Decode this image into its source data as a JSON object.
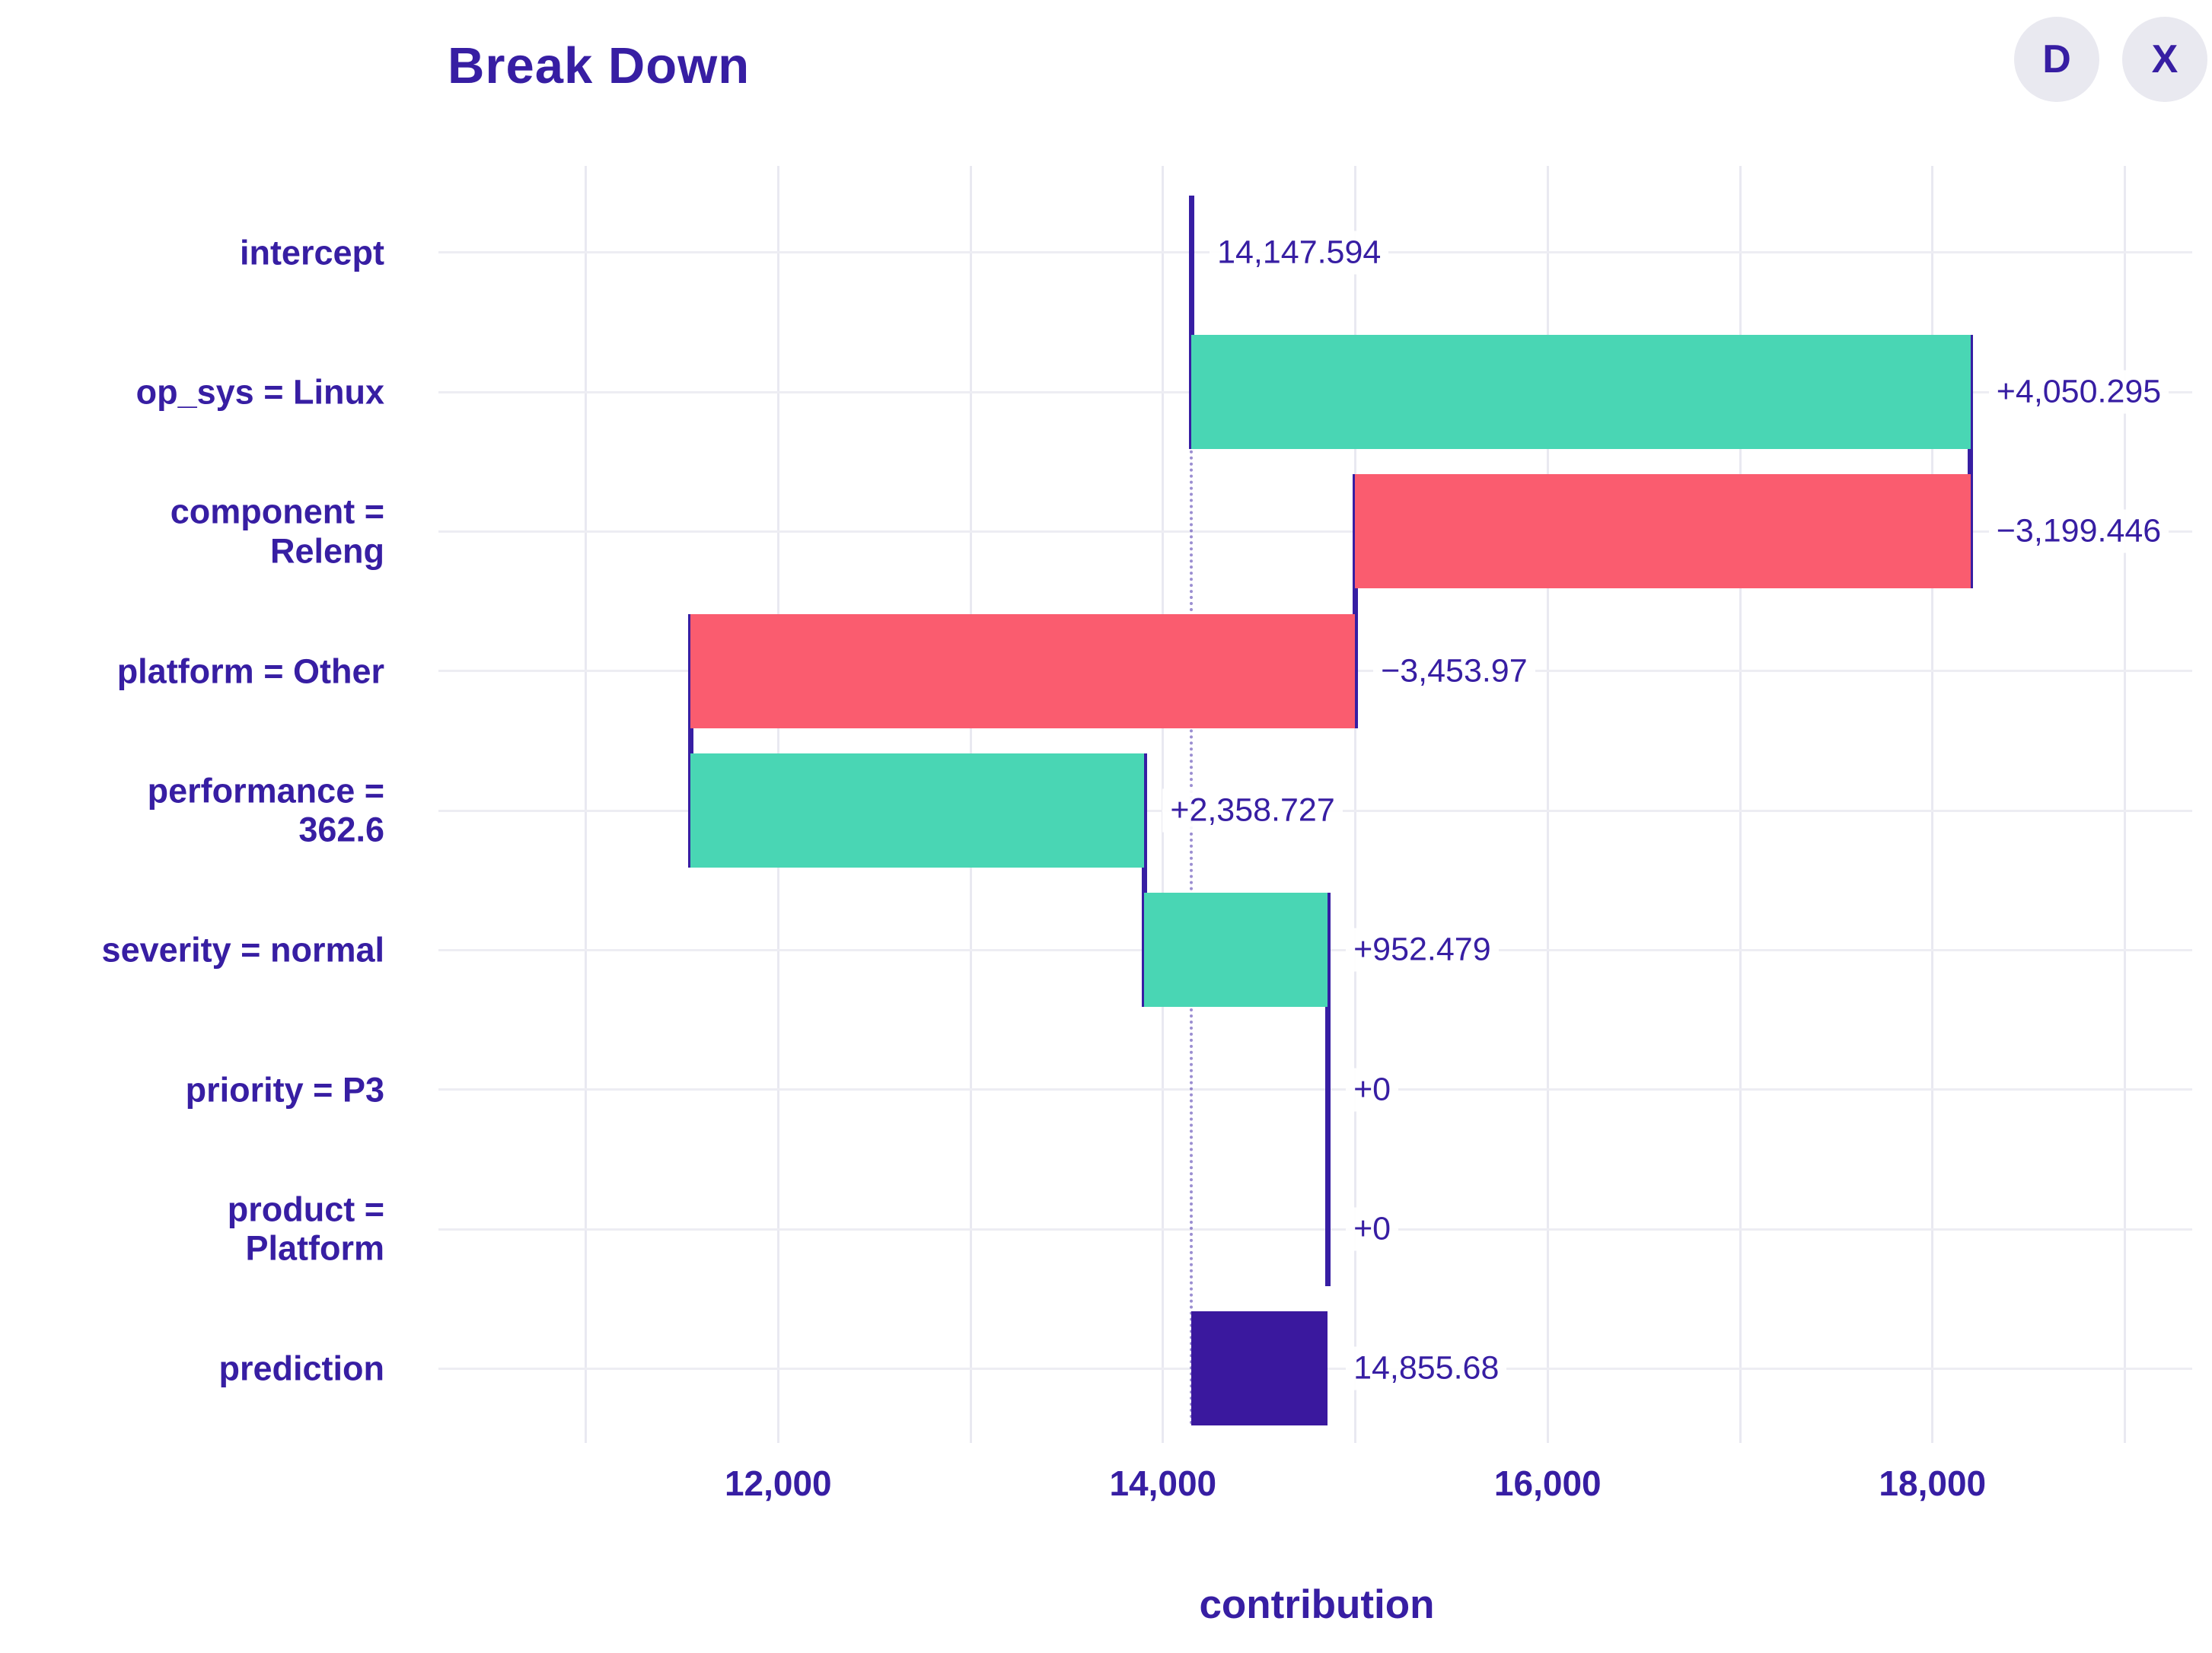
{
  "header": {
    "title": "Break Down",
    "buttons": [
      {
        "label": "D"
      },
      {
        "label": "X"
      }
    ]
  },
  "chart_data": {
    "type": "bar",
    "subtype": "breakdown-waterfall",
    "title": "Break Down",
    "xlabel": "contribution",
    "ylabel": "",
    "xlim": [
      10250,
      19350
    ],
    "x_ticks": [
      12000,
      14000,
      16000,
      18000
    ],
    "x_tick_labels": [
      "12,000",
      "14,000",
      "16,000",
      "18,000"
    ],
    "grid_step": 1000,
    "grid_range": [
      11000,
      19000
    ],
    "intercept": 14147.594,
    "prediction": 14855.68,
    "colors": {
      "positive": "#49d6b4",
      "negative": "#fa5c6f",
      "prediction": "#3a189e",
      "text": "#371ea3",
      "grid": "#e9e9f1"
    },
    "rows": [
      {
        "label": "intercept",
        "value_label": "14,147.594",
        "contribution": 14147.594,
        "kind": "marker",
        "start": 14147.594,
        "end": 14147.594
      },
      {
        "label": "op_sys = Linux",
        "value_label": "+4,050.295",
        "contribution": 4050.295,
        "kind": "positive",
        "start": 14147.594,
        "end": 18197.889
      },
      {
        "label": "component =\nReleng",
        "value_label": "−3,199.446",
        "contribution": -3199.446,
        "kind": "negative",
        "start": 18197.889,
        "end": 14998.443
      },
      {
        "label": "platform = Other",
        "value_label": "−3,453.97",
        "contribution": -3453.97,
        "kind": "negative",
        "start": 14998.443,
        "end": 11544.473
      },
      {
        "label": "performance =\n362.6",
        "value_label": "+2,358.727",
        "contribution": 2358.727,
        "kind": "positive",
        "start": 11544.473,
        "end": 13903.2
      },
      {
        "label": "severity = normal",
        "value_label": "+952.479",
        "contribution": 952.479,
        "kind": "positive",
        "start": 13903.2,
        "end": 14855.679
      },
      {
        "label": "priority = P3",
        "value_label": "+0",
        "contribution": 0,
        "kind": "zero",
        "start": 14855.679,
        "end": 14855.679
      },
      {
        "label": "product =\nPlatform",
        "value_label": "+0",
        "contribution": 0,
        "kind": "zero",
        "start": 14855.679,
        "end": 14855.679
      },
      {
        "label": "prediction",
        "value_label": "14,855.68",
        "contribution": 14855.68,
        "kind": "prediction",
        "start": 14147.594,
        "end": 14855.68
      }
    ]
  }
}
